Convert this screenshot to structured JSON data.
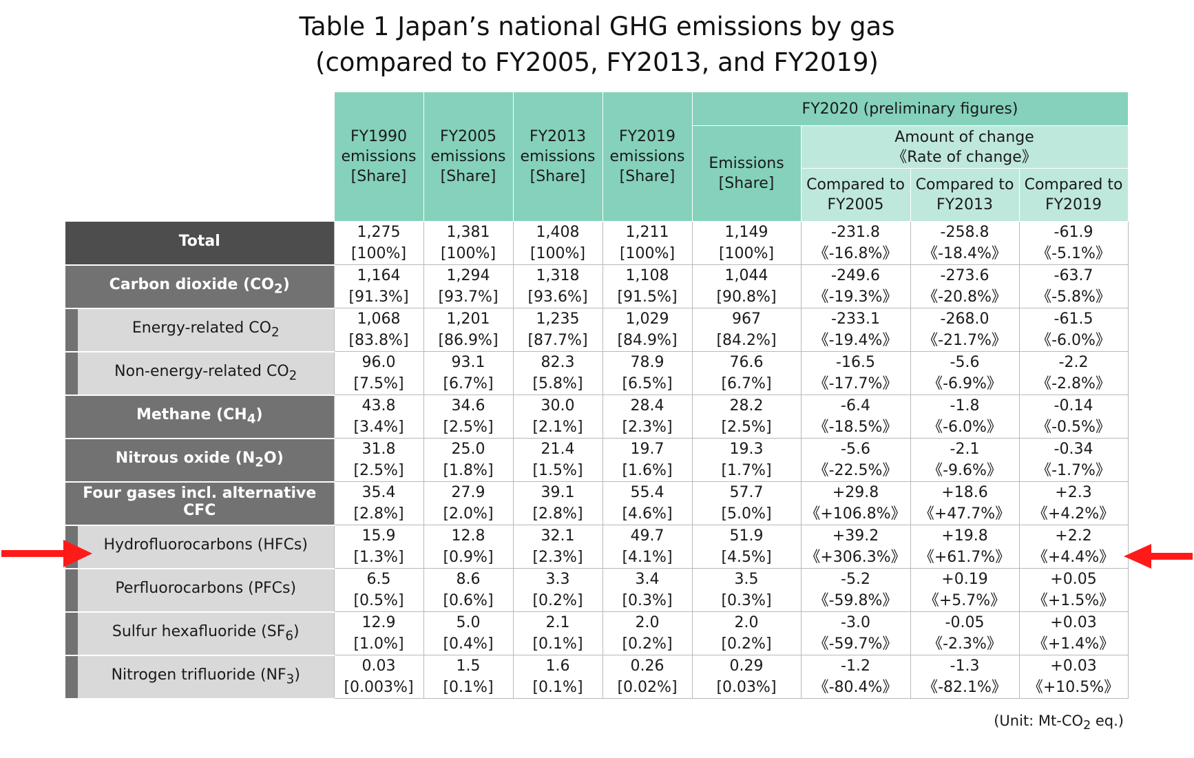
{
  "title": {
    "line1": "Table 1 Japan’s national GHG emissions by gas",
    "line2": "(compared to FY2005, FY2013, and FY2019)"
  },
  "headers": {
    "fy1990": [
      "FY1990",
      "emissions",
      "[Share]"
    ],
    "fy2005": [
      "FY2005",
      "emissions",
      "[Share]"
    ],
    "fy2013": [
      "FY2013",
      "emissions",
      "[Share]"
    ],
    "fy2019": [
      "FY2019",
      "emissions",
      "[Share]"
    ],
    "fy2020_group": "FY2020 (preliminary figures)",
    "emissions": [
      "Emissions",
      "[Share]"
    ],
    "change_group": [
      "Amount of change",
      "《Rate of change》"
    ],
    "cmp2005": [
      "Compared to",
      "FY2005"
    ],
    "cmp2013": [
      "Compared to",
      "FY2013"
    ],
    "cmp2019": [
      "Compared to",
      "FY2019"
    ]
  },
  "rows": [
    {
      "label": "Total",
      "sub": "",
      "after": "",
      "style": "dark",
      "cells": [
        [
          "1,275",
          "[100%]"
        ],
        [
          "1,381",
          "[100%]"
        ],
        [
          "1,408",
          "[100%]"
        ],
        [
          "1,211",
          "[100%]"
        ],
        [
          "1,149",
          "[100%]"
        ],
        [
          "-231.8",
          "《-16.8%》"
        ],
        [
          "-258.8",
          "《-18.4%》"
        ],
        [
          "-61.9",
          "《-5.1%》"
        ]
      ]
    },
    {
      "label": "Carbon dioxide (CO",
      "sub": "2",
      "after": ")",
      "style": "mid",
      "cells": [
        [
          "1,164",
          "[91.3%]"
        ],
        [
          "1,294",
          "[93.7%]"
        ],
        [
          "1,318",
          "[93.6%]"
        ],
        [
          "1,108",
          "[91.5%]"
        ],
        [
          "1,044",
          "[90.8%]"
        ],
        [
          "-249.6",
          "《-19.3%》"
        ],
        [
          "-273.6",
          "《-20.8%》"
        ],
        [
          "-63.7",
          "《-5.8%》"
        ]
      ]
    },
    {
      "label": "Energy-related CO",
      "sub": "2",
      "after": "",
      "style": "sub",
      "cells": [
        [
          "1,068",
          "[83.8%]"
        ],
        [
          "1,201",
          "[86.9%]"
        ],
        [
          "1,235",
          "[87.7%]"
        ],
        [
          "1,029",
          "[84.9%]"
        ],
        [
          "967",
          "[84.2%]"
        ],
        [
          "-233.1",
          "《-19.4%》"
        ],
        [
          "-268.0",
          "《-21.7%》"
        ],
        [
          "-61.5",
          "《-6.0%》"
        ]
      ]
    },
    {
      "label": "Non-energy-related CO",
      "sub": "2",
      "after": "",
      "style": "sub",
      "cells": [
        [
          "96.0",
          "[7.5%]"
        ],
        [
          "93.1",
          "[6.7%]"
        ],
        [
          "82.3",
          "[5.8%]"
        ],
        [
          "78.9",
          "[6.5%]"
        ],
        [
          "76.6",
          "[6.7%]"
        ],
        [
          "-16.5",
          "《-17.7%》"
        ],
        [
          "-5.6",
          "《-6.9%》"
        ],
        [
          "-2.2",
          "《-2.8%》"
        ]
      ]
    },
    {
      "label": "Methane (CH",
      "sub": "4",
      "after": ")",
      "style": "mid",
      "cells": [
        [
          "43.8",
          "[3.4%]"
        ],
        [
          "34.6",
          "[2.5%]"
        ],
        [
          "30.0",
          "[2.1%]"
        ],
        [
          "28.4",
          "[2.3%]"
        ],
        [
          "28.2",
          "[2.5%]"
        ],
        [
          "-6.4",
          "《-18.5%》"
        ],
        [
          "-1.8",
          "《-6.0%》"
        ],
        [
          "-0.14",
          "《-0.5%》"
        ]
      ]
    },
    {
      "label": "Nitrous oxide (N",
      "sub": "2",
      "after": "O)",
      "style": "mid",
      "cells": [
        [
          "31.8",
          "[2.5%]"
        ],
        [
          "25.0",
          "[1.8%]"
        ],
        [
          "21.4",
          "[1.5%]"
        ],
        [
          "19.7",
          "[1.6%]"
        ],
        [
          "19.3",
          "[1.7%]"
        ],
        [
          "-5.6",
          "《-22.5%》"
        ],
        [
          "-2.1",
          "《-9.6%》"
        ],
        [
          "-0.34",
          "《-1.7%》"
        ]
      ]
    },
    {
      "label": "Four gases incl. alternative CFC",
      "sub": "",
      "after": "",
      "style": "mid",
      "cells": [
        [
          "35.4",
          "[2.8%]"
        ],
        [
          "27.9",
          "[2.0%]"
        ],
        [
          "39.1",
          "[2.8%]"
        ],
        [
          "55.4",
          "[4.6%]"
        ],
        [
          "57.7",
          "[5.0%]"
        ],
        [
          "+29.8",
          "《+106.8%》"
        ],
        [
          "+18.6",
          "《+47.7%》"
        ],
        [
          "+2.3",
          "《+4.2%》"
        ]
      ]
    },
    {
      "label": "Hydrofluorocarbons (HFCs)",
      "sub": "",
      "after": "",
      "style": "sub",
      "cells": [
        [
          "15.9",
          "[1.3%]"
        ],
        [
          "12.8",
          "[0.9%]"
        ],
        [
          "32.1",
          "[2.3%]"
        ],
        [
          "49.7",
          "[4.1%]"
        ],
        [
          "51.9",
          "[4.5%]"
        ],
        [
          "+39.2",
          "《+306.3%》"
        ],
        [
          "+19.8",
          "《+61.7%》"
        ],
        [
          "+2.2",
          "《+4.4%》"
        ]
      ]
    },
    {
      "label": "Perfluorocarbons (PFCs)",
      "sub": "",
      "after": "",
      "style": "sub",
      "cells": [
        [
          "6.5",
          "[0.5%]"
        ],
        [
          "8.6",
          "[0.6%]"
        ],
        [
          "3.3",
          "[0.2%]"
        ],
        [
          "3.4",
          "[0.3%]"
        ],
        [
          "3.5",
          "[0.3%]"
        ],
        [
          "-5.2",
          "《-59.8%》"
        ],
        [
          "+0.19",
          "《+5.7%》"
        ],
        [
          "+0.05",
          "《+1.5%》"
        ]
      ]
    },
    {
      "label": "Sulfur hexafluoride (SF",
      "sub": "6",
      "after": ")",
      "style": "sub",
      "cells": [
        [
          "12.9",
          "[1.0%]"
        ],
        [
          "5.0",
          "[0.4%]"
        ],
        [
          "2.1",
          "[0.1%]"
        ],
        [
          "2.0",
          "[0.2%]"
        ],
        [
          "2.0",
          "[0.2%]"
        ],
        [
          "-3.0",
          "《-59.7%》"
        ],
        [
          "-0.05",
          "《-2.3%》"
        ],
        [
          "+0.03",
          "《+1.4%》"
        ]
      ]
    },
    {
      "label": "Nitrogen trifluoride (NF",
      "sub": "3",
      "after": ")",
      "style": "sub",
      "cells": [
        [
          "0.03",
          "[0.003%]"
        ],
        [
          "1.5",
          "[0.1%]"
        ],
        [
          "1.6",
          "[0.1%]"
        ],
        [
          "0.26",
          "[0.02%]"
        ],
        [
          "0.29",
          "[0.03%]"
        ],
        [
          "-1.2",
          "《-80.4%》"
        ],
        [
          "-1.3",
          "《-82.1%》"
        ],
        [
          "+0.03",
          "《+10.5%》"
        ]
      ]
    }
  ],
  "unit": {
    "before": "(Unit: Mt-CO",
    "sub": "2",
    "after": " eq.)"
  },
  "colors": {
    "header": "#85d1bb",
    "header_light": "#bfe8dc",
    "label_dark": "#4d4d4d",
    "label_mid": "#727272",
    "label_sub": "#d9d9d9",
    "arrow": "#ff1a1a"
  },
  "icons": {
    "left": "arrow-right-icon",
    "right": "arrow-left-icon"
  }
}
